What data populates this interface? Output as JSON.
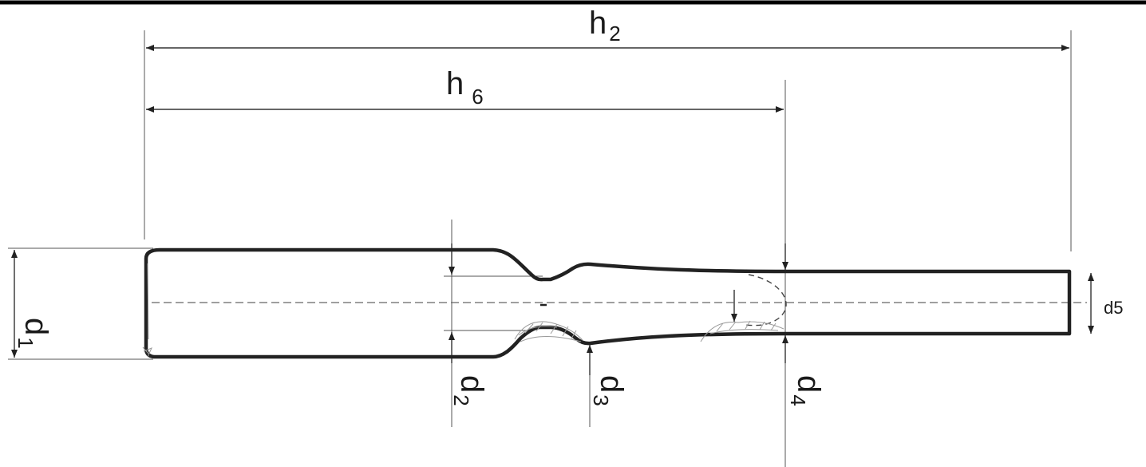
{
  "labels": {
    "h2_main": "h",
    "h2_sub": "2",
    "h6_main": "h",
    "h6_sub": "6",
    "d1_main": "d",
    "d1_sub": "1",
    "d2_main": "d",
    "d2_sub": "2",
    "d3_main": "d",
    "d3_sub": "3",
    "d4_main": "d",
    "d4_sub": "4",
    "d5": "d5"
  }
}
